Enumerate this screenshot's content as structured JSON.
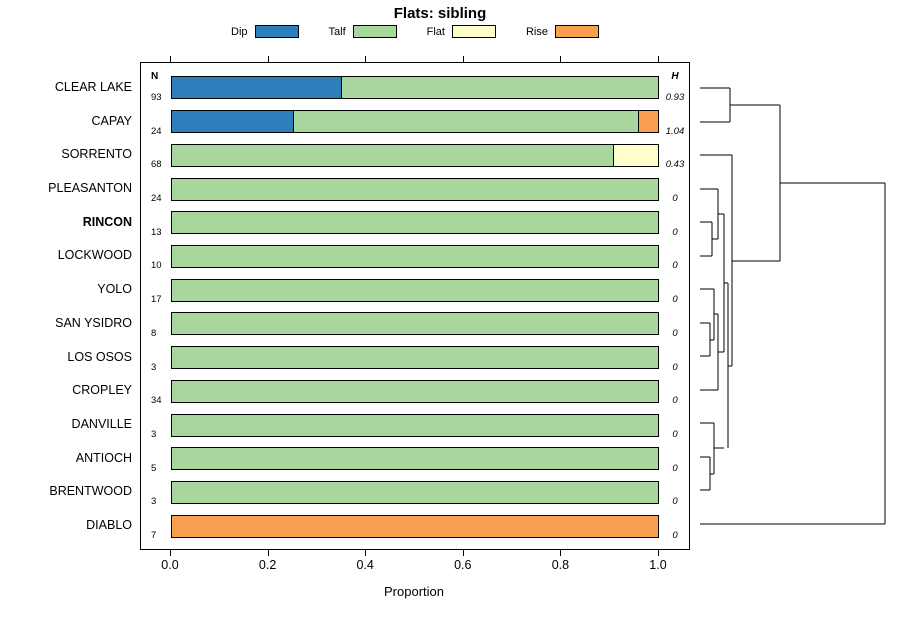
{
  "title": "Flats: sibling",
  "legend": [
    {
      "label": "Dip",
      "color": "#2E7EBC"
    },
    {
      "label": "Talf",
      "color": "#A8D79E"
    },
    {
      "label": "Flat",
      "color": "#FFFFCC"
    },
    {
      "label": "Rise",
      "color": "#F9A050"
    }
  ],
  "columns": {
    "n_header": "N",
    "h_header": "H"
  },
  "axis": {
    "xlabel": "Proportion",
    "x_ticks": [
      "0.0",
      "0.2",
      "0.4",
      "0.6",
      "0.8",
      "1.0"
    ],
    "xlim": [
      0,
      1
    ]
  },
  "chart_data": {
    "type": "bar",
    "stacked": true,
    "orientation": "horizontal",
    "title": "Flats: sibling",
    "xlabel": "Proportion",
    "xlim": [
      0,
      1
    ],
    "series_names": [
      "Dip",
      "Talf",
      "Flat",
      "Rise"
    ],
    "rows": [
      {
        "label": "CLEAR LAKE",
        "n": 93,
        "h": "0.93",
        "bold": false,
        "values": [
          0.35,
          0.65,
          0,
          0
        ]
      },
      {
        "label": "CAPAY",
        "n": 24,
        "h": "1.04",
        "bold": false,
        "values": [
          0.25,
          0.71,
          0,
          0.04
        ]
      },
      {
        "label": "SORRENTO",
        "n": 68,
        "h": "0.43",
        "bold": false,
        "values": [
          0,
          0.91,
          0.09,
          0
        ]
      },
      {
        "label": "PLEASANTON",
        "n": 24,
        "h": "0",
        "bold": false,
        "values": [
          0,
          1,
          0,
          0
        ]
      },
      {
        "label": "RINCON",
        "n": 13,
        "h": "0",
        "bold": true,
        "values": [
          0,
          1,
          0,
          0
        ]
      },
      {
        "label": "LOCKWOOD",
        "n": 10,
        "h": "0",
        "bold": false,
        "values": [
          0,
          1,
          0,
          0
        ]
      },
      {
        "label": "YOLO",
        "n": 17,
        "h": "0",
        "bold": false,
        "values": [
          0,
          1,
          0,
          0
        ]
      },
      {
        "label": "SAN YSIDRO",
        "n": 8,
        "h": "0",
        "bold": false,
        "values": [
          0,
          1,
          0,
          0
        ]
      },
      {
        "label": "LOS OSOS",
        "n": 3,
        "h": "0",
        "bold": false,
        "values": [
          0,
          1,
          0,
          0
        ]
      },
      {
        "label": "CROPLEY",
        "n": 34,
        "h": "0",
        "bold": false,
        "values": [
          0,
          1,
          0,
          0
        ]
      },
      {
        "label": "DANVILLE",
        "n": 3,
        "h": "0",
        "bold": false,
        "values": [
          0,
          1,
          0,
          0
        ]
      },
      {
        "label": "ANTIOCH",
        "n": 5,
        "h": "0",
        "bold": false,
        "values": [
          0,
          1,
          0,
          0
        ]
      },
      {
        "label": "BRENTWOOD",
        "n": 3,
        "h": "0",
        "bold": false,
        "values": [
          0,
          1,
          0,
          0
        ]
      },
      {
        "label": "DIABLO",
        "n": 7,
        "h": "0",
        "bold": false,
        "values": [
          0,
          0,
          0,
          1
        ]
      }
    ]
  },
  "dendrogram": {
    "segments": [
      [
        10,
        26,
        40,
        26
      ],
      [
        10,
        60,
        40,
        60
      ],
      [
        40,
        26,
        40,
        60
      ],
      [
        40,
        43,
        90,
        43
      ],
      [
        10,
        160,
        22,
        160
      ],
      [
        10,
        194,
        22,
        194
      ],
      [
        22,
        160,
        22,
        194
      ],
      [
        22,
        177,
        28,
        177
      ],
      [
        10,
        127,
        28,
        127
      ],
      [
        28,
        127,
        28,
        177
      ],
      [
        28,
        152,
        34,
        152
      ],
      [
        10,
        261,
        20,
        261
      ],
      [
        10,
        294,
        20,
        294
      ],
      [
        20,
        261,
        20,
        294
      ],
      [
        20,
        278,
        24,
        278
      ],
      [
        10,
        227,
        24,
        227
      ],
      [
        24,
        227,
        24,
        278
      ],
      [
        24,
        252,
        28,
        252
      ],
      [
        10,
        328,
        28,
        328
      ],
      [
        28,
        252,
        28,
        328
      ],
      [
        28,
        290,
        34,
        290
      ],
      [
        10,
        395,
        20,
        395
      ],
      [
        10,
        428,
        20,
        428
      ],
      [
        20,
        395,
        20,
        428
      ],
      [
        20,
        412,
        24,
        412
      ],
      [
        10,
        361,
        24,
        361
      ],
      [
        24,
        361,
        24,
        412
      ],
      [
        24,
        386,
        34,
        386
      ],
      [
        34,
        152,
        34,
        290
      ],
      [
        34,
        221,
        38,
        221
      ],
      [
        38,
        221,
        38,
        386
      ],
      [
        38,
        304,
        42,
        304
      ],
      [
        10,
        93,
        42,
        93
      ],
      [
        42,
        93,
        42,
        304
      ],
      [
        42,
        199,
        90,
        199
      ],
      [
        90,
        43,
        90,
        199
      ],
      [
        90,
        121,
        195,
        121
      ],
      [
        10,
        462,
        195,
        462
      ],
      [
        195,
        121,
        195,
        462
      ]
    ]
  }
}
